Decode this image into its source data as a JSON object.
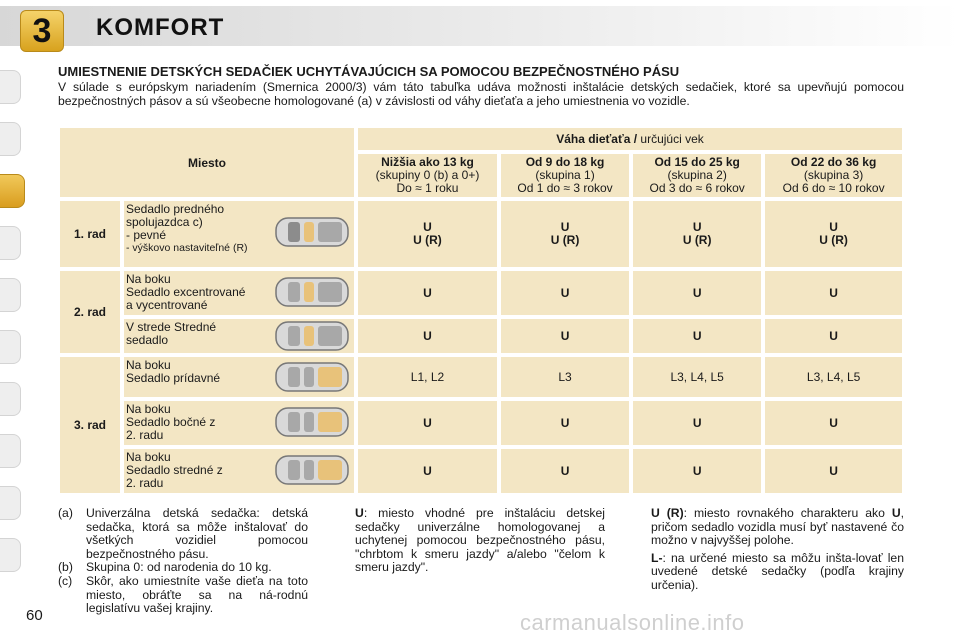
{
  "header": {
    "chapter_number": "3",
    "title": "KOMFORT"
  },
  "section_title": "UMIESTNENIE DETSKÝCH SEDAČIEK UCHYTÁVAJÚCICH SA POMOCOU BEZPEČNOSTNÉHO PÁSU",
  "intro": "V súlade s európskym nariadením (Smernica 2000/3) vám táto tabuľka udáva možnosti inštalácie detských sedačiek, ktoré sa upevňujú pomocou bezpečnostných pásov a sú všeobecne homologované (a) v závislosti od váhy dieťaťa a jeho umiestnenia vo vozidle.",
  "table": {
    "col_place": "Miesto",
    "weight_header_bold": "Váha dieťaťa /",
    "weight_header_rest": " určujúci vek",
    "groups": [
      {
        "title": "Nižšia ako 13 kg",
        "sub": "(skupiny 0 (b) a 0+)",
        "age": "Do ≈ 1 roku"
      },
      {
        "title": "Od 9 do 18 kg",
        "sub": "(skupina 1)",
        "age": "Od 1 do ≈ 3 rokov"
      },
      {
        "title": "Od 15 do 25 kg",
        "sub": "(skupina 2)",
        "age": "Od 3 do ≈ 6 rokov"
      },
      {
        "title": "Od 22 do 36 kg",
        "sub": "(skupina 3)",
        "age": "Od 6 do ≈ 10 rokov"
      }
    ],
    "rows": [
      {
        "label": "1. rad",
        "seats": [
          {
            "desc": [
              "Sedadlo predného",
              "spolujazdca c)",
              "- pevné",
              "- výškovo nastaviteľné (R)"
            ],
            "values": [
              "U",
              "U",
              "U",
              "U"
            ],
            "values2": [
              "U (R)",
              "U (R)",
              "U (R)",
              "U (R)"
            ]
          }
        ]
      },
      {
        "label": "2. rad",
        "seats": [
          {
            "desc": [
              "Na boku",
              "Sedadlo excentrované",
              "a vycentrované"
            ],
            "values": [
              "U",
              "U",
              "U",
              "U"
            ]
          },
          {
            "desc": [
              "V strede Stredné",
              "sedadlo"
            ],
            "values": [
              "U",
              "U",
              "U",
              "U"
            ]
          }
        ]
      },
      {
        "label": "3. rad",
        "seats": [
          {
            "desc": [
              "Na boku",
              "Sedadlo prídavné"
            ],
            "values": [
              "L1, L2",
              "L3",
              "L3, L4, L5",
              "L3, L4, L5"
            ]
          },
          {
            "desc": [
              "Na boku",
              "Sedadlo bočné z",
              "2. radu"
            ],
            "values": [
              "U",
              "U",
              "U",
              "U"
            ]
          },
          {
            "desc": [
              "Na boku",
              "Sedadlo stredné z",
              "2. radu"
            ],
            "values": [
              "U",
              "U",
              "U",
              "U"
            ]
          }
        ]
      }
    ]
  },
  "notes_left": [
    {
      "key": "(a)",
      "text": "Univerzálna detská sedačka: detská sedačka, ktorá sa môže inštalovať do všetkých vozidiel pomocou bezpečnostného pásu."
    },
    {
      "key": "(b)",
      "text": "Skupina 0: od narodenia do 10 kg."
    },
    {
      "key": "(c)",
      "text": "Skôr, ako umiestníte vaše dieťa na toto miesto, obráťte sa na ná-rodnú legislatívu vašej krajiny."
    }
  ],
  "note_mid": {
    "key": "U",
    "text": ": miesto vhodné pre inštaláciu detskej sedačky univerzálne homologovanej a uchytenej pomocou bezpečnostného pásu, \"chrbtom k smeru jazdy\" a/alebo \"čelom k smeru jazdy\"."
  },
  "note_r1": {
    "key": "U (R)",
    "text": ": miesto rovnakého charakteru ako ",
    "key2": "U",
    "text2": ", pričom sedadlo vozidla musí byť nastavené čo možno v najvyššej polohe."
  },
  "note_r2": {
    "key": "L-",
    "text": ": na určené miesto sa môžu inšta-lovať len uvedené detské sedačky (podľa krajiny určenia)."
  },
  "page_number": "60",
  "watermark": "carmanualsonline.info",
  "colors": {
    "cell_bg": "#f3e6c4",
    "badge": "#e0ae2c"
  }
}
